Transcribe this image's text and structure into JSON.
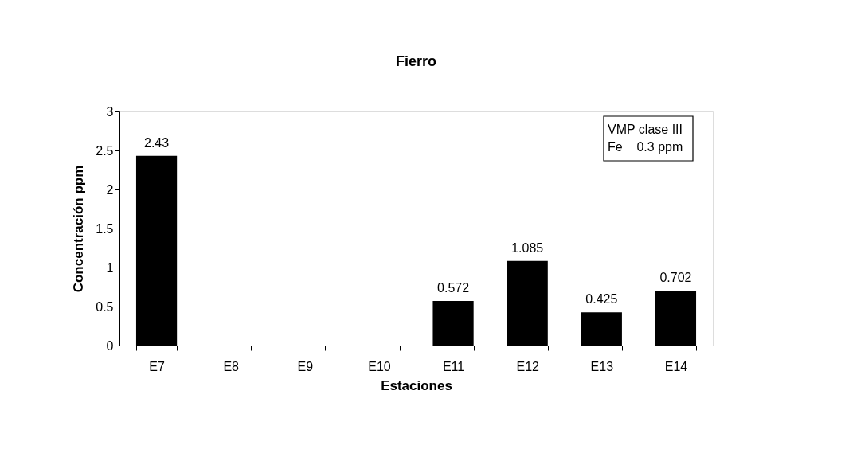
{
  "chart_data": {
    "type": "bar",
    "title": "Fierro",
    "xlabel": "Estaciones",
    "ylabel": "Concentración ppm",
    "categories": [
      "E7",
      "E8",
      "E9",
      "E10",
      "E11",
      "E12",
      "E13",
      "E14"
    ],
    "values": [
      2.43,
      null,
      null,
      null,
      0.572,
      1.085,
      0.425,
      0.702
    ],
    "color": "#000000",
    "data_labels": true,
    "ylim": [
      0,
      3
    ],
    "yticks": [
      0,
      0.5,
      1,
      1.5,
      2,
      2.5,
      3
    ],
    "grid": false,
    "annotations": [
      "VMP clase III",
      "Fe    0.3 ppm"
    ]
  }
}
